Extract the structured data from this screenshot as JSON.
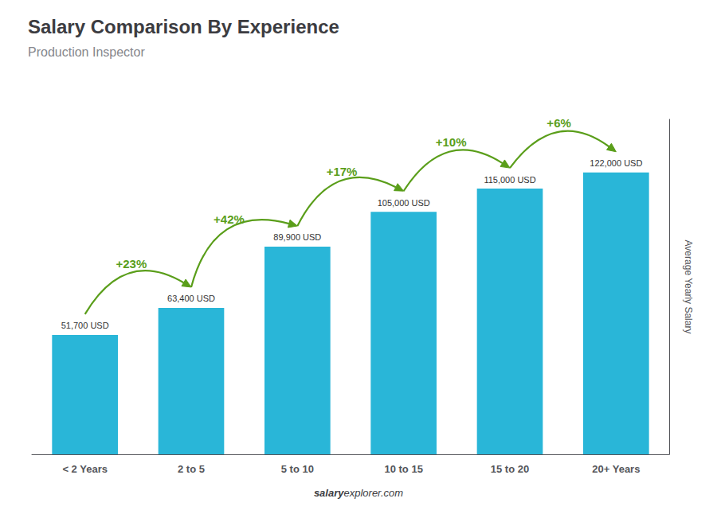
{
  "chart_data": {
    "type": "bar",
    "title": "Salary Comparison By Experience",
    "subtitle": "Production Inspector",
    "ylabel": "Average Yearly Salary",
    "footer": [
      "salary",
      "explorer.com"
    ],
    "categories": [
      "< 2 Years",
      "2 to 5",
      "5 to 10",
      "10 to 15",
      "15 to 20",
      "20+ Years"
    ],
    "values": [
      51700,
      63400,
      89900,
      105000,
      115000,
      122000
    ],
    "value_labels": [
      "51,700 USD",
      "63,400 USD",
      "89,900 USD",
      "105,000 USD",
      "115,000 USD",
      "122,000 USD"
    ],
    "data_labels": true,
    "color": "#29b6d8",
    "ylim": [
      0,
      145000
    ],
    "tick_labels": "x",
    "grid": false,
    "annotations": [
      {
        "text": "+23%",
        "from": "< 2 Years",
        "to": "2 to 5",
        "color": "#5a9e1a"
      },
      {
        "text": "+42%",
        "from": "2 to 5",
        "to": "5 to 10",
        "color": "#5a9e1a"
      },
      {
        "text": "+17%",
        "from": "5 to 10",
        "to": "10 to 15",
        "color": "#5a9e1a"
      },
      {
        "text": "+10%",
        "from": "10 to 15",
        "to": "15 to 20",
        "color": "#5a9e1a"
      },
      {
        "text": "+6%",
        "from": "15 to 20",
        "to": "20+ Years",
        "color": "#5a9e1a"
      }
    ]
  }
}
